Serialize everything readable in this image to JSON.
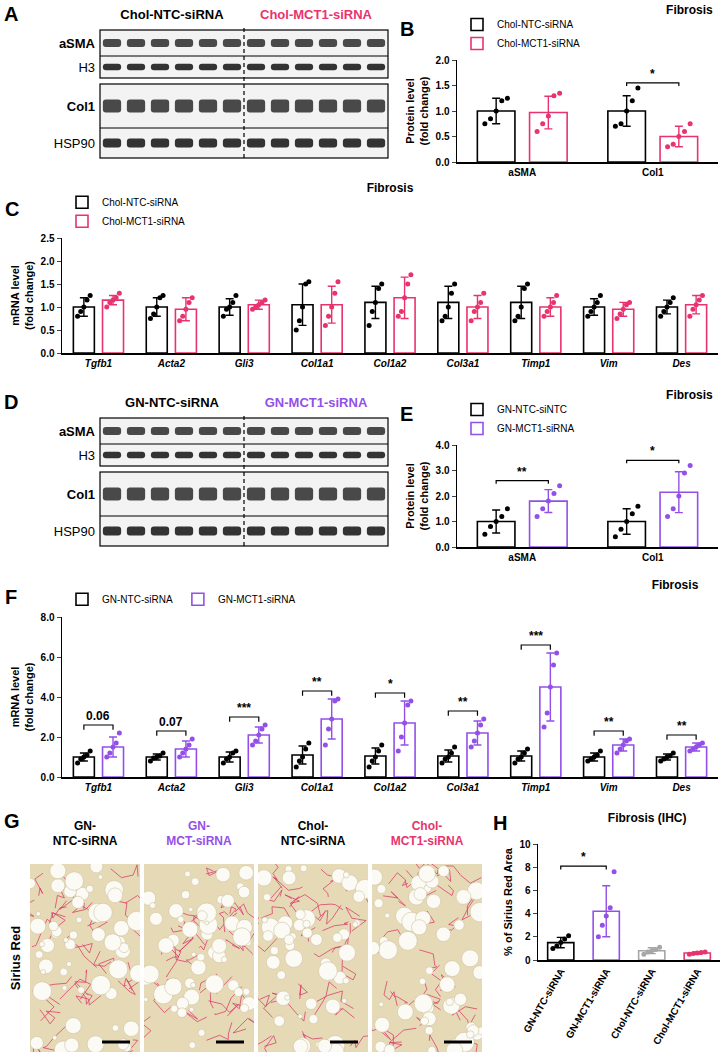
{
  "chart_data": [
    {
      "panel": "B",
      "type": "bar",
      "title": "Fibrosis",
      "y_label": "Protein level\n(fold change)",
      "categories": [
        "aSMA",
        "Col1"
      ],
      "series": [
        {
          "name": "Chol-NTC-siRNA",
          "color": "#000000",
          "values": [
            1.0,
            1.0
          ],
          "errors": [
            0.25,
            0.3
          ],
          "points": [
            [
              0.75,
              0.85,
              1.0,
              1.2,
              1.25
            ],
            [
              0.7,
              0.75,
              1.0,
              1.2,
              1.45
            ]
          ]
        },
        {
          "name": "Chol-MCT1-siRNA",
          "color": "#e8336e",
          "values": [
            0.97,
            0.5
          ],
          "errors": [
            0.32,
            0.2
          ],
          "points": [
            [
              0.6,
              0.75,
              0.9,
              1.3,
              1.35
            ],
            [
              0.3,
              0.35,
              0.5,
              0.6,
              0.75
            ]
          ]
        }
      ],
      "ylim": [
        0,
        2.0
      ],
      "yticks": [
        {
          "value": 0,
          "label": "0.0"
        },
        {
          "value": 0.5,
          "label": "0.5"
        },
        {
          "value": 1.0,
          "label": "1.0"
        },
        {
          "value": 1.5,
          "label": "1.5"
        },
        {
          "value": 2.0,
          "label": "2.0"
        }
      ],
      "grid": false,
      "legend": "top left",
      "annotations": [
        {
          "from": "Col1",
          "to": "Col1",
          "text": "*"
        }
      ]
    },
    {
      "panel": "C",
      "type": "bar",
      "title": "Fibrosis",
      "y_label": "mRNA level\n(fold change)",
      "categories": [
        "Tgfb1",
        "Acta2",
        "Gli3",
        "Col1a1",
        "Col1a2",
        "Col3a1",
        "Timp1",
        "Vim",
        "Des"
      ],
      "series": [
        {
          "name": "Chol-NTC-siRNA",
          "color": "#000000",
          "values": [
            1.0,
            1.0,
            1.0,
            1.05,
            1.1,
            1.1,
            1.1,
            1.0,
            1.0
          ],
          "errors": [
            0.2,
            0.2,
            0.18,
            0.45,
            0.35,
            0.35,
            0.35,
            0.18,
            0.15
          ],
          "points": [
            [
              0.8,
              0.9,
              1.0,
              1.15,
              1.25
            ],
            [
              0.75,
              0.85,
              1.0,
              1.2,
              1.25
            ],
            [
              0.8,
              0.95,
              1.0,
              1.1,
              1.25
            ],
            [
              0.5,
              0.7,
              1.0,
              1.5,
              1.55
            ],
            [
              0.6,
              0.9,
              1.1,
              1.4,
              1.5
            ],
            [
              0.7,
              0.8,
              1.0,
              1.3,
              1.5
            ],
            [
              0.7,
              0.8,
              1.0,
              1.4,
              1.5
            ],
            [
              0.8,
              0.9,
              1.0,
              1.1,
              1.25
            ],
            [
              0.8,
              0.9,
              1.0,
              1.1,
              1.2
            ]
          ]
        },
        {
          "name": "Chol-MCT1-siRNA",
          "color": "#e8336e",
          "values": [
            1.15,
            0.95,
            1.05,
            1.05,
            1.2,
            1.0,
            1.0,
            0.95,
            1.05
          ],
          "errors": [
            0.1,
            0.25,
            0.1,
            0.4,
            0.45,
            0.25,
            0.2,
            0.15,
            0.2
          ],
          "points": [
            [
              1.0,
              1.1,
              1.15,
              1.2,
              1.3
            ],
            [
              0.7,
              0.8,
              0.95,
              1.1,
              1.2
            ],
            [
              0.95,
              1.0,
              1.05,
              1.1,
              1.15
            ],
            [
              0.6,
              0.8,
              1.0,
              1.3,
              1.55
            ],
            [
              0.8,
              0.9,
              1.2,
              1.5,
              1.7
            ],
            [
              0.7,
              0.9,
              1.0,
              1.1,
              1.3
            ],
            [
              0.8,
              0.9,
              1.0,
              1.1,
              1.25
            ],
            [
              0.75,
              0.85,
              0.95,
              1.05,
              1.1
            ],
            [
              0.8,
              0.95,
              1.05,
              1.15,
              1.25
            ]
          ]
        }
      ],
      "ylim": [
        0,
        2.5
      ],
      "yticks": [
        {
          "value": 0,
          "label": "0.0"
        },
        {
          "value": 0.5,
          "label": "0.5"
        },
        {
          "value": 1.0,
          "label": "1.0"
        },
        {
          "value": 1.5,
          "label": "1.5"
        },
        {
          "value": 2.0,
          "label": "2.0"
        },
        {
          "value": 2.5,
          "label": "2.5"
        }
      ],
      "grid": false,
      "legend": "top left",
      "annotations": []
    },
    {
      "panel": "E",
      "type": "bar",
      "title": "Fibrosis",
      "y_label": "Protein level\n(fold change)",
      "categories": [
        "aSMA",
        "Col1"
      ],
      "series": [
        {
          "name": "GN-NTC-siNTC",
          "color": "#000000",
          "values": [
            1.0,
            1.0
          ],
          "errors": [
            0.45,
            0.5
          ],
          "points": [
            [
              0.5,
              0.8,
              1.0,
              1.2,
              1.5
            ],
            [
              0.4,
              0.7,
              1.0,
              1.3,
              1.6
            ]
          ]
        },
        {
          "name": "GN-MCT1-siRNA",
          "color": "#9350e8",
          "values": [
            1.8,
            2.15
          ],
          "errors": [
            0.45,
            0.8
          ],
          "points": [
            [
              1.2,
              1.5,
              1.8,
              2.1,
              2.4
            ],
            [
              1.2,
              1.5,
              2.0,
              2.9,
              3.2
            ]
          ]
        }
      ],
      "ylim": [
        0,
        4.0
      ],
      "yticks": [
        {
          "value": 0,
          "label": "0.0"
        },
        {
          "value": 1.0,
          "label": "1.0"
        },
        {
          "value": 2.0,
          "label": "2.0"
        },
        {
          "value": 3.0,
          "label": "3.0"
        },
        {
          "value": 4.0,
          "label": "4.0"
        }
      ],
      "grid": false,
      "legend": "top left",
      "annotations": [
        {
          "from": "aSMA",
          "to": "aSMA",
          "text": "**"
        },
        {
          "from": "Col1",
          "to": "Col1",
          "text": "*"
        }
      ]
    },
    {
      "panel": "F",
      "type": "bar",
      "title": "Fibrosis",
      "y_label": "mRNA level\n(fold change)",
      "categories": [
        "Tgfb1",
        "Acta2",
        "Gli3",
        "Col1a1",
        "Col1a2",
        "Col3a1",
        "Timp1",
        "Vim",
        "Des"
      ],
      "series": [
        {
          "name": "GN-NTC-siRNA",
          "color": "#000000",
          "values": [
            1.0,
            1.0,
            1.0,
            1.1,
            1.05,
            1.05,
            1.05,
            1.0,
            1.0
          ],
          "errors": [
            0.2,
            0.15,
            0.25,
            0.45,
            0.4,
            0.3,
            0.25,
            0.2,
            0.15
          ],
          "points": [
            [
              0.7,
              0.9,
              1.0,
              1.1,
              1.3
            ],
            [
              0.8,
              0.95,
              1.0,
              1.05,
              1.2
            ],
            [
              0.7,
              0.9,
              1.0,
              1.2,
              1.3
            ],
            [
              0.5,
              0.8,
              1.0,
              1.4,
              1.7
            ],
            [
              0.5,
              0.8,
              1.0,
              1.3,
              1.6
            ],
            [
              0.7,
              0.9,
              1.0,
              1.2,
              1.5
            ],
            [
              0.7,
              0.9,
              1.0,
              1.2,
              1.4
            ],
            [
              0.8,
              0.9,
              1.0,
              1.1,
              1.3
            ],
            [
              0.8,
              0.9,
              1.0,
              1.05,
              1.2
            ]
          ]
        },
        {
          "name": "GN-MCT1-siRNA",
          "color": "#9350e8",
          "values": [
            1.5,
            1.4,
            2.1,
            2.9,
            2.7,
            2.2,
            4.5,
            1.6,
            1.5
          ],
          "errors": [
            0.5,
            0.4,
            0.4,
            1.0,
            1.1,
            0.6,
            1.7,
            0.3,
            0.2
          ],
          "points": [
            [
              1.0,
              1.2,
              1.5,
              1.7,
              2.2
            ],
            [
              1.0,
              1.2,
              1.4,
              1.6,
              1.9
            ],
            [
              1.6,
              1.8,
              2.1,
              2.4,
              2.6
            ],
            [
              1.6,
              2.4,
              2.9,
              3.8,
              3.9
            ],
            [
              1.3,
              2.0,
              2.7,
              3.6,
              3.8
            ],
            [
              1.5,
              1.8,
              2.2,
              2.6,
              2.9
            ],
            [
              2.5,
              3.2,
              4.5,
              5.6,
              6.2
            ],
            [
              1.2,
              1.4,
              1.6,
              1.8,
              1.9
            ],
            [
              1.3,
              1.4,
              1.5,
              1.6,
              1.7
            ]
          ]
        }
      ],
      "ylim": [
        0,
        8.0
      ],
      "yticks": [
        {
          "value": 0,
          "label": "0.0"
        },
        {
          "value": 2.0,
          "label": "2.0"
        },
        {
          "value": 4.0,
          "label": "4.0"
        },
        {
          "value": 6.0,
          "label": "6.0"
        },
        {
          "value": 8.0,
          "label": "8.0"
        }
      ],
      "grid": false,
      "legend": "top left",
      "annotations": [
        {
          "from": "Tgfb1",
          "to": "Tgfb1",
          "text": "0.06"
        },
        {
          "from": "Acta2",
          "to": "Acta2",
          "text": "0.07"
        },
        {
          "from": "Gli3",
          "to": "Gli3",
          "text": "***"
        },
        {
          "from": "Col1a1",
          "to": "Col1a1",
          "text": "**"
        },
        {
          "from": "Col1a2",
          "to": "Col1a2",
          "text": "*"
        },
        {
          "from": "Col3a1",
          "to": "Col3a1",
          "text": "**"
        },
        {
          "from": "Timp1",
          "to": "Timp1",
          "text": "***"
        },
        {
          "from": "Vim",
          "to": "Vim",
          "text": "**"
        },
        {
          "from": "Des",
          "to": "Des",
          "text": "**"
        }
      ]
    },
    {
      "panel": "H",
      "type": "bar",
      "title": "Fibrosis (IHC)",
      "y_label": "% of Sirius Red Area",
      "categories": [
        "GN-NTC-siRNA",
        "GN-MCT1-siRNA",
        "Chol-NTC-siRNA",
        "Chol-MCT1-siRNA"
      ],
      "values": [
        1.5,
        4.2,
        0.8,
        0.6
      ],
      "errors": [
        0.45,
        2.2,
        0.25,
        0.1
      ],
      "colors": [
        "#000000",
        "#9350e8",
        "#a6a6a6",
        "#e8336e"
      ],
      "points": [
        [
          1.0,
          1.2,
          1.5,
          1.8,
          2.1
        ],
        [
          2.0,
          3.0,
          3.8,
          4.5,
          7.6
        ],
        [
          0.5,
          0.7,
          0.8,
          0.9,
          1.1
        ],
        [
          0.5,
          0.55,
          0.6,
          0.65,
          0.7
        ]
      ],
      "ylim": [
        0,
        10
      ],
      "yticks": [
        0,
        2,
        4,
        6,
        8,
        10
      ],
      "grid": false,
      "annotations": [
        {
          "from": "GN-NTC-siRNA",
          "to": "GN-MCT1-siRNA",
          "text": "*"
        }
      ]
    }
  ],
  "blots": [
    {
      "panel": "A",
      "groups": [
        "Chol-NTC-siRNA",
        "Chol-MCT1-siRNA"
      ],
      "group_colors": [
        "#000000",
        "#e8336e"
      ],
      "boxes": [
        [
          "aSMA",
          "H3"
        ],
        [
          "Col1",
          "HSP90"
        ]
      ]
    },
    {
      "panel": "D",
      "groups": [
        "GN-NTC-siRNA",
        "GN-MCT1-siRNA"
      ],
      "group_colors": [
        "#000000",
        "#9350e8"
      ],
      "boxes": [
        [
          "aSMA",
          "H3"
        ],
        [
          "Col1",
          "HSP90"
        ]
      ]
    }
  ],
  "histology": {
    "panel": "G",
    "row_label": "Sirius Red",
    "images": [
      {
        "label": "GN-\nNTC-siRNA",
        "color": "#000000"
      },
      {
        "label": "GN-\nMCT-siRNA",
        "color": "#9350e8"
      },
      {
        "label": "Chol-\nNTC-siRNA",
        "color": "#000000"
      },
      {
        "label": "Chol-\nMCT1-siRNA",
        "color": "#e8336e"
      }
    ]
  }
}
